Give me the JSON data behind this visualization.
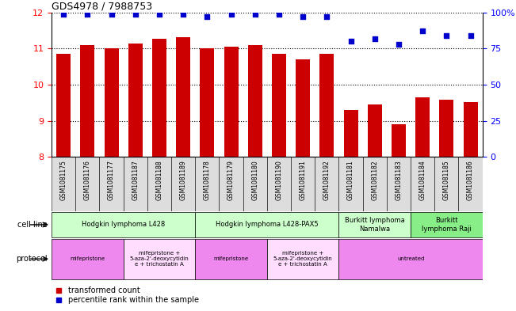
{
  "title": "GDS4978 / 7988753",
  "samples": [
    "GSM1081175",
    "GSM1081176",
    "GSM1081177",
    "GSM1081187",
    "GSM1081188",
    "GSM1081189",
    "GSM1081178",
    "GSM1081179",
    "GSM1081180",
    "GSM1081190",
    "GSM1081191",
    "GSM1081192",
    "GSM1081181",
    "GSM1081182",
    "GSM1081183",
    "GSM1081184",
    "GSM1081185",
    "GSM1081186"
  ],
  "bar_values": [
    10.85,
    11.1,
    11.0,
    11.15,
    11.28,
    11.32,
    11.0,
    11.05,
    11.1,
    10.85,
    10.7,
    10.85,
    9.3,
    9.45,
    8.9,
    9.65,
    9.58,
    9.52
  ],
  "dot_values": [
    99,
    99,
    99,
    99,
    99,
    99,
    97,
    99,
    99,
    99,
    97,
    97,
    80,
    82,
    78,
    87,
    84,
    84
  ],
  "ylim_left": [
    8,
    12
  ],
  "ylim_right": [
    0,
    100
  ],
  "yticks_left": [
    8,
    9,
    10,
    11,
    12
  ],
  "yticks_right": [
    0,
    25,
    50,
    75,
    100
  ],
  "bar_color": "#cc0000",
  "dot_color": "#0000cc",
  "cell_line_groups": [
    {
      "label": "Hodgkin lymphoma L428",
      "start": 0,
      "end": 6,
      "color": "#ccffcc"
    },
    {
      "label": "Hodgkin lymphoma L428-PAX5",
      "start": 6,
      "end": 12,
      "color": "#ccffcc"
    },
    {
      "label": "Burkitt lymphoma\nNamalwa",
      "start": 12,
      "end": 15,
      "color": "#ccffcc"
    },
    {
      "label": "Burkitt\nlymphoma Raji",
      "start": 15,
      "end": 18,
      "color": "#88ee88"
    }
  ],
  "protocol_groups": [
    {
      "label": "mifepristone",
      "start": 0,
      "end": 3,
      "color": "#ee88ee"
    },
    {
      "label": "mifepristone +\n5-aza-2'-deoxycytidin\ne + trichostatin A",
      "start": 3,
      "end": 6,
      "color": "#ffddff"
    },
    {
      "label": "mifepristone",
      "start": 6,
      "end": 9,
      "color": "#ee88ee"
    },
    {
      "label": "mifepristone +\n5-aza-2'-deoxycytidin\ne + trichostatin A",
      "start": 9,
      "end": 12,
      "color": "#ffddff"
    },
    {
      "label": "untreated",
      "start": 12,
      "end": 18,
      "color": "#ee88ee"
    }
  ],
  "legend_items": [
    {
      "label": "transformed count",
      "color": "#cc0000"
    },
    {
      "label": "percentile rank within the sample",
      "color": "#0000cc"
    }
  ],
  "sample_bg": "#dddddd"
}
